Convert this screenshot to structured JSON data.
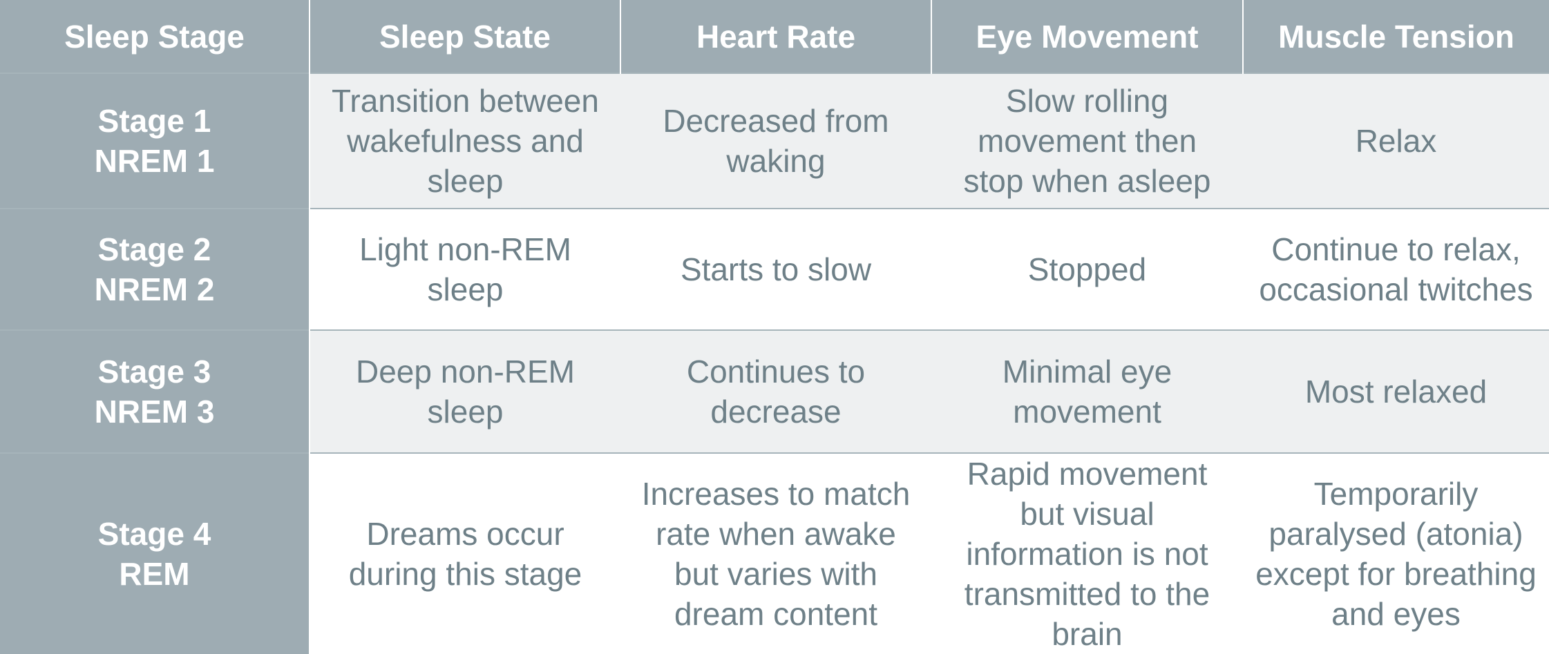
{
  "table": {
    "headers": [
      "Sleep Stage",
      "Sleep State",
      "Heart Rate",
      "Eye Movement",
      "Muscle Tension"
    ],
    "rows": [
      {
        "stage": "Stage 1",
        "substage": "NREM 1",
        "sleep_state": "Transition between\nwakefulness and\nsleep",
        "heart_rate": "Decreased from\nwaking",
        "eye_movement": "Slow rolling\nmovement then\nstop when asleep",
        "muscle_tension": "Relax"
      },
      {
        "stage": "Stage 2",
        "substage": "NREM 2",
        "sleep_state": "Light non-REM\nsleep",
        "heart_rate": "Starts to slow",
        "eye_movement": "Stopped",
        "muscle_tension": "Continue to relax,\noccasional twitches"
      },
      {
        "stage": "Stage 3",
        "substage": "NREM 3",
        "sleep_state": "Deep non-REM\nsleep",
        "heart_rate": "Continues to\ndecrease",
        "eye_movement": "Minimal eye\nmovement",
        "muscle_tension": "Most relaxed"
      },
      {
        "stage": "Stage 4",
        "substage": "REM",
        "sleep_state": "Dreams occur\nduring this stage",
        "heart_rate": "Increases to match\nrate when awake\nbut varies with\ndream content",
        "eye_movement": "Rapid movement\nbut visual\ninformation is not\ntransmitted to the\nbrain",
        "muscle_tension": "Temporarily\nparalysed (atonia)\nexcept for breathing\nand eyes"
      }
    ]
  },
  "colors": {
    "header_bg": "#9eacb3",
    "header_text": "#ffffff",
    "body_text": "#6e8088",
    "alt_row_bg": "#eef0f1",
    "row_bg": "#ffffff"
  }
}
